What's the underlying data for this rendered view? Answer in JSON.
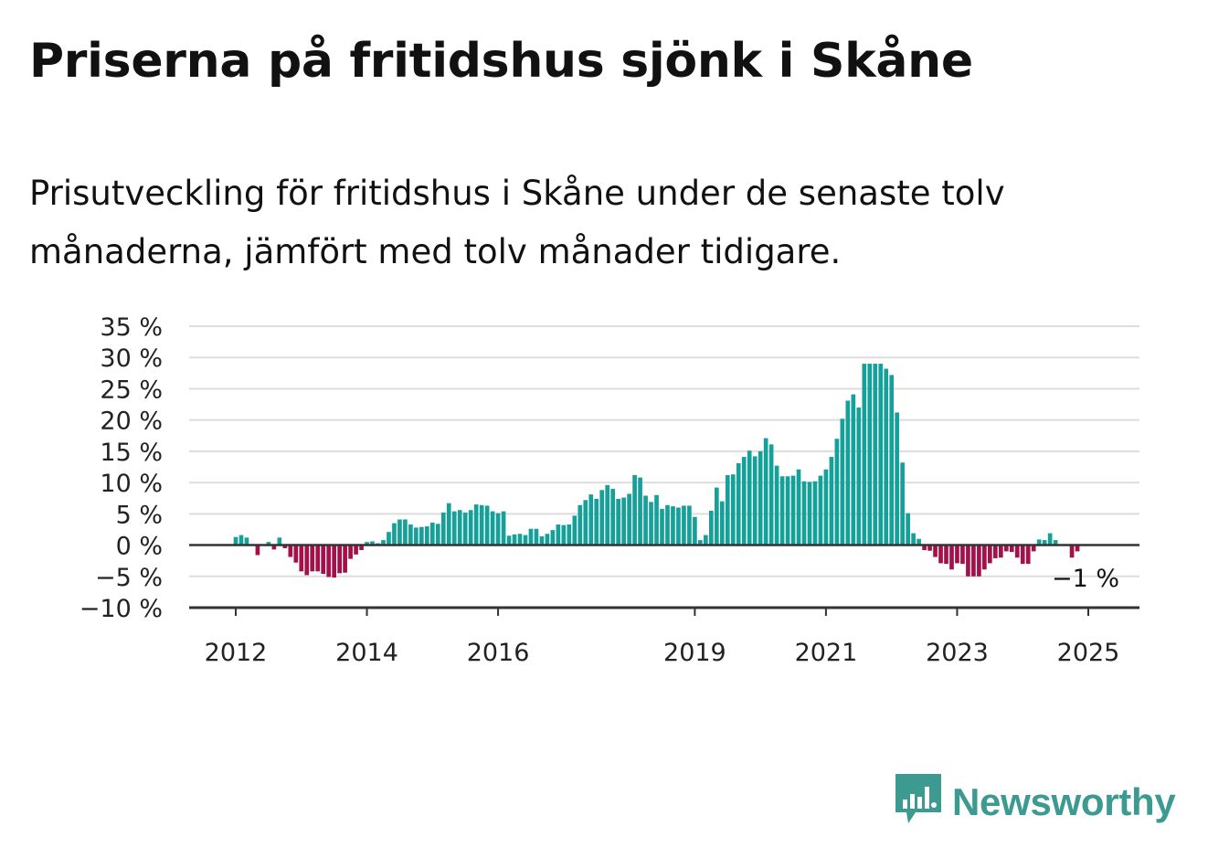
{
  "title": "Priserna på fritidshus sjönk i Skåne",
  "subtitle": "Prisutveckling för fritidshus i Skåne under de senaste tolv månaderna, jämfört med tolv månader tidigare.",
  "brand": {
    "name": "Newsworthy",
    "icon": "bar-chart-speech-bubble-icon",
    "color": "#3d9a91"
  },
  "colors": {
    "positive": "#16a09a",
    "negative": "#a3104a",
    "grid": "#dddddd",
    "axis": "#333333"
  },
  "chart_data": {
    "type": "bar",
    "xlabel": "",
    "ylabel": "",
    "ylim": [
      -10,
      35
    ],
    "yticks": [
      -10,
      -5,
      0,
      5,
      10,
      15,
      20,
      25,
      30,
      35
    ],
    "ytick_labels": [
      "−10 %",
      "−5 %",
      "0 %",
      "5 %",
      "10 %",
      "15 %",
      "20 %",
      "25 %",
      "30 %",
      "35 %"
    ],
    "xticks": [
      2012,
      2014,
      2016,
      2019,
      2021,
      2023,
      2025
    ],
    "xtick_labels": [
      "2012",
      "2014",
      "2016",
      "2019",
      "2021",
      "2023",
      "2025"
    ],
    "grid": true,
    "start": "2012-01",
    "last_value_label": "−1 %",
    "values": [
      1.3,
      1.6,
      1.2,
      0,
      -1.6,
      0,
      0.5,
      -0.7,
      1.2,
      -0.5,
      -1.9,
      -2.8,
      -4.2,
      -4.8,
      -4.2,
      -4.2,
      -4.6,
      -5.1,
      -5.2,
      -4.5,
      -4.4,
      -2.2,
      -1.5,
      -0.8,
      0.5,
      0.6,
      0.3,
      0.8,
      2.1,
      3.5,
      4.1,
      4.1,
      3.3,
      2.8,
      2.9,
      3.0,
      3.6,
      3.4,
      5.2,
      6.7,
      5.4,
      5.6,
      5.2,
      5.6,
      6.5,
      6.4,
      6.3,
      5.4,
      5.1,
      5.4,
      1.5,
      1.7,
      1.8,
      1.6,
      2.6,
      2.6,
      1.4,
      1.8,
      2.4,
      3.3,
      3.2,
      3.3,
      4.7,
      6.4,
      7.2,
      8.1,
      7.4,
      8.8,
      9.6,
      9.0,
      7.4,
      7.6,
      8.2,
      11.2,
      10.8,
      7.9,
      6.9,
      8.0,
      5.8,
      6.4,
      6.2,
      6.0,
      6.3,
      6.3,
      4.5,
      0.8,
      1.6,
      5.5,
      9.2,
      7.0,
      11.2,
      11.3,
      13.1,
      14.1,
      15.1,
      14.2,
      15.0,
      17.1,
      16.1,
      12.7,
      11.0,
      11.0,
      11.1,
      12.1,
      10.2,
      10.1,
      10.2,
      11.1,
      12.1,
      14.1,
      17.0,
      20.2,
      23.1,
      24.1,
      22.0,
      29.0,
      29.0,
      29.0,
      29.0,
      28.2,
      27.2,
      21.2,
      13.2,
      5.1,
      1.9,
      1.0,
      -0.8,
      -0.9,
      -1.9,
      -2.9,
      -3.0,
      -3.9,
      -2.9,
      -3.0,
      -5.0,
      -5.0,
      -5.0,
      -3.9,
      -2.9,
      -2.1,
      -2.0,
      -1.0,
      -1.1,
      -2.0,
      -3.0,
      -3.0,
      -1.0,
      0.9,
      0.8,
      1.9,
      0.8,
      0,
      0,
      -2.0,
      -1.0
    ]
  }
}
